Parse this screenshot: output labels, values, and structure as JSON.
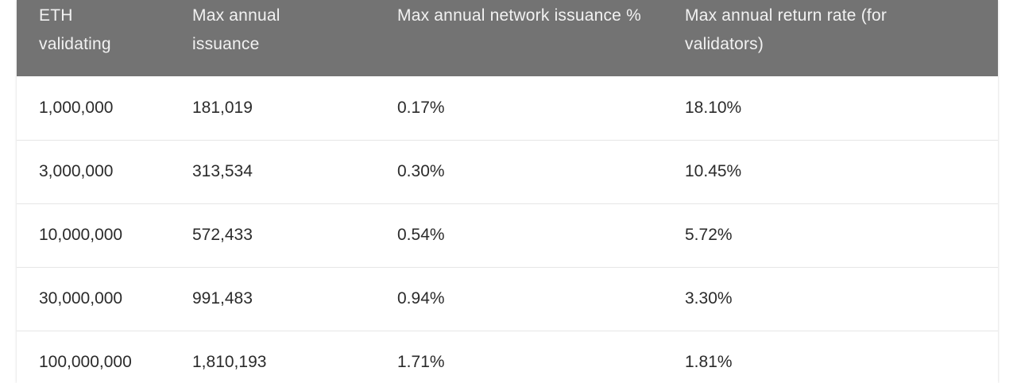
{
  "table": {
    "headers": [
      "ETH validating",
      "Max annual issuance",
      "Max annual network issuance %",
      "Max annual return rate (for validators)"
    ],
    "rows": [
      [
        "1,000,000",
        "181,019",
        "0.17%",
        "18.10%"
      ],
      [
        "3,000,000",
        "313,534",
        "0.30%",
        "10.45%"
      ],
      [
        "10,000,000",
        "572,433",
        "0.54%",
        "5.72%"
      ],
      [
        "30,000,000",
        "991,483",
        "0.94%",
        "3.30%"
      ],
      [
        "100,000,000",
        "1,810,193",
        "1.71%",
        "1.81%"
      ]
    ]
  },
  "colors": {
    "header_bg": "#737373",
    "header_text": "#f2f2f2",
    "body_text": "#2b2b2b",
    "row_divider": "#e6e6e6"
  }
}
